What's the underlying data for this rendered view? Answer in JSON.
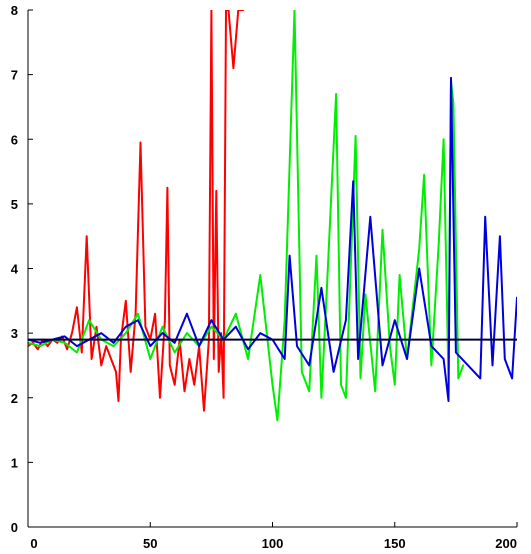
{
  "chart_data": {
    "type": "line",
    "title": "",
    "xlabel": "",
    "ylabel": "",
    "xlim": [
      0,
      200
    ],
    "ylim": [
      0,
      8
    ],
    "xticks": [
      0,
      50,
      100,
      150,
      200
    ],
    "yticks": [
      0,
      1,
      2,
      3,
      4,
      5,
      6,
      7,
      8
    ],
    "grid": false,
    "legend": "none",
    "series": [
      {
        "color": "#ff0000",
        "x": [
          0,
          2,
          4,
          6,
          8,
          10,
          12,
          14,
          16,
          18,
          20,
          22,
          24,
          26,
          28,
          30,
          32,
          34,
          36,
          37,
          38,
          40,
          42,
          44,
          46,
          48,
          50,
          52,
          54,
          56,
          57,
          58,
          60,
          62,
          64,
          66,
          68,
          70,
          72,
          74,
          75,
          76,
          77,
          78,
          79,
          80,
          81,
          82,
          84,
          86,
          88
        ],
        "y": [
          2.8,
          2.85,
          2.75,
          2.9,
          2.8,
          2.9,
          2.85,
          2.95,
          2.75,
          3.0,
          3.4,
          2.7,
          4.5,
          2.6,
          3.1,
          2.5,
          2.8,
          2.6,
          2.4,
          1.95,
          2.9,
          3.5,
          2.4,
          3.3,
          5.95,
          3.1,
          2.9,
          3.3,
          2.0,
          3.2,
          5.25,
          2.5,
          2.2,
          2.9,
          2.1,
          2.6,
          2.2,
          2.8,
          1.8,
          2.9,
          8.0,
          2.6,
          5.2,
          2.4,
          3.0,
          2.0,
          8.0,
          8.0,
          7.1,
          8.0,
          8.0
        ]
      },
      {
        "color": "#00ee00",
        "x": [
          0,
          5,
          10,
          15,
          20,
          25,
          30,
          35,
          40,
          45,
          50,
          55,
          60,
          65,
          70,
          75,
          80,
          85,
          90,
          95,
          100,
          102,
          105,
          109,
          112,
          115,
          118,
          120,
          122,
          126,
          128,
          130,
          134,
          136,
          138,
          142,
          145,
          148,
          150,
          152,
          155,
          160,
          162,
          165,
          168,
          170,
          172,
          173,
          174,
          176,
          178
        ],
        "y": [
          2.85,
          2.8,
          2.9,
          2.85,
          2.7,
          3.2,
          2.9,
          2.8,
          3.0,
          3.3,
          2.6,
          3.1,
          2.7,
          3.0,
          2.8,
          3.1,
          2.9,
          3.3,
          2.6,
          3.9,
          2.2,
          1.65,
          3.2,
          8.0,
          2.4,
          2.1,
          4.2,
          2.0,
          3.5,
          6.7,
          2.2,
          2.0,
          6.05,
          2.3,
          3.6,
          2.1,
          4.6,
          2.8,
          2.2,
          3.9,
          2.6,
          4.3,
          5.45,
          2.5,
          4.4,
          6.0,
          2.3,
          6.9,
          6.55,
          2.3,
          2.5
        ]
      },
      {
        "color": "#0000dd",
        "x": [
          0,
          5,
          10,
          15,
          20,
          25,
          30,
          35,
          40,
          45,
          50,
          55,
          60,
          65,
          70,
          75,
          80,
          85,
          90,
          95,
          100,
          105,
          107,
          110,
          115,
          120,
          125,
          130,
          133,
          135,
          140,
          145,
          150,
          155,
          160,
          165,
          170,
          172,
          173,
          175,
          180,
          185,
          187,
          190,
          193,
          195,
          198,
          200
        ],
        "y": [
          2.9,
          2.85,
          2.9,
          2.95,
          2.8,
          2.9,
          3.0,
          2.85,
          3.1,
          3.2,
          2.8,
          3.0,
          2.85,
          3.3,
          2.8,
          3.2,
          2.9,
          3.1,
          2.75,
          3.0,
          2.9,
          2.6,
          4.2,
          2.8,
          2.5,
          3.7,
          2.4,
          3.2,
          5.35,
          2.6,
          4.8,
          2.5,
          3.2,
          2.6,
          4.0,
          2.8,
          2.6,
          1.95,
          6.95,
          2.7,
          2.5,
          2.3,
          4.8,
          2.5,
          4.5,
          2.6,
          2.3,
          3.55
        ]
      },
      {
        "color": "#000033",
        "x": [
          0,
          200
        ],
        "y": [
          2.9,
          2.9
        ]
      }
    ]
  }
}
